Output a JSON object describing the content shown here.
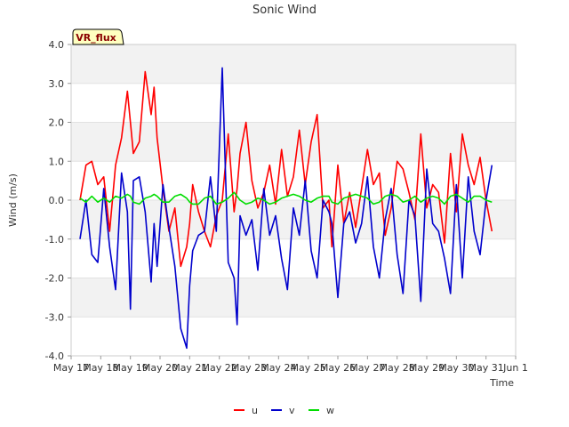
{
  "chart_data": {
    "type": "line",
    "title": "Sonic Wind",
    "xlabel": "Time",
    "ylabel": "Wind (m/s)",
    "badge": "VR_flux",
    "ylim": [
      -4.0,
      4.0
    ],
    "yticks": [
      -4.0,
      -3.0,
      -2.0,
      -1.0,
      0.0,
      1.0,
      2.0,
      3.0,
      4.0
    ],
    "ytick_labels": [
      "-4.0",
      "-3.0",
      "-2.0",
      "-1.0",
      "0.0",
      "1.0",
      "2.0",
      "3.0",
      "4.0"
    ],
    "xlim": [
      0,
      15
    ],
    "xticks": [
      0,
      1,
      2,
      3,
      4,
      5,
      6,
      7,
      8,
      9,
      10,
      11,
      12,
      13,
      14,
      15
    ],
    "xtick_labels": [
      "May 17",
      "May 18",
      "May 19",
      "May 20",
      "May 21",
      "May 22",
      "May 23",
      "May 24",
      "May 25",
      "May 26",
      "May 27",
      "May 28",
      "May 29",
      "May 30",
      "May 31",
      "Jun 1"
    ],
    "grid": "horizontal bands",
    "legend_position": "bottom-center",
    "series": [
      {
        "name": "u",
        "color": "#ff0000",
        "x": [
          0.3,
          0.5,
          0.7,
          0.9,
          1.1,
          1.3,
          1.5,
          1.7,
          1.9,
          2.0,
          2.1,
          2.3,
          2.5,
          2.7,
          2.8,
          2.9,
          3.1,
          3.3,
          3.5,
          3.7,
          3.9,
          4.0,
          4.1,
          4.3,
          4.5,
          4.7,
          4.9,
          5.1,
          5.3,
          5.5,
          5.6,
          5.7,
          5.9,
          6.1,
          6.3,
          6.5,
          6.7,
          6.9,
          7.1,
          7.3,
          7.5,
          7.7,
          7.9,
          8.1,
          8.3,
          8.5,
          8.7,
          8.8,
          9.0,
          9.2,
          9.4,
          9.6,
          9.8,
          10.0,
          10.2,
          10.4,
          10.6,
          10.8,
          11.0,
          11.2,
          11.4,
          11.6,
          11.8,
          12.0,
          12.2,
          12.4,
          12.6,
          12.8,
          13.0,
          13.2,
          13.4,
          13.6,
          13.8,
          14.0,
          14.2
        ],
        "y": [
          0.0,
          0.9,
          1.0,
          0.4,
          0.6,
          -0.8,
          0.9,
          1.6,
          2.8,
          2.0,
          1.2,
          1.5,
          3.3,
          2.2,
          2.9,
          1.6,
          0.3,
          -0.8,
          -0.2,
          -1.7,
          -1.2,
          -0.6,
          0.4,
          -0.3,
          -0.8,
          -1.2,
          -0.4,
          0.0,
          1.7,
          -0.3,
          0.3,
          1.2,
          2.0,
          0.5,
          -0.2,
          0.2,
          0.9,
          -0.1,
          1.3,
          0.1,
          0.6,
          1.8,
          0.4,
          1.5,
          2.2,
          -0.2,
          0.0,
          -1.2,
          0.9,
          -0.6,
          0.2,
          -0.7,
          0.3,
          1.3,
          0.4,
          0.7,
          -0.9,
          -0.2,
          1.0,
          0.8,
          0.2,
          -0.5,
          1.7,
          -0.2,
          0.4,
          0.2,
          -1.1,
          1.2,
          -0.3,
          1.7,
          0.9,
          0.4,
          1.1,
          0.0,
          -0.8
        ]
      },
      {
        "name": "v",
        "color": "#0000cc",
        "x": [
          0.3,
          0.5,
          0.7,
          0.9,
          1.1,
          1.3,
          1.5,
          1.7,
          1.9,
          2.0,
          2.1,
          2.3,
          2.5,
          2.7,
          2.8,
          2.9,
          3.1,
          3.3,
          3.5,
          3.7,
          3.9,
          4.0,
          4.1,
          4.3,
          4.5,
          4.7,
          4.9,
          5.1,
          5.3,
          5.5,
          5.6,
          5.7,
          5.9,
          6.1,
          6.3,
          6.5,
          6.7,
          6.9,
          7.1,
          7.3,
          7.5,
          7.7,
          7.9,
          8.1,
          8.3,
          8.5,
          8.7,
          8.8,
          9.0,
          9.2,
          9.4,
          9.6,
          9.8,
          10.0,
          10.2,
          10.4,
          10.6,
          10.8,
          11.0,
          11.2,
          11.4,
          11.6,
          11.8,
          12.0,
          12.2,
          12.4,
          12.6,
          12.8,
          13.0,
          13.2,
          13.4,
          13.6,
          13.8,
          14.0,
          14.2
        ],
        "y": [
          -1.0,
          0.0,
          -1.4,
          -1.6,
          0.3,
          -1.2,
          -2.3,
          0.7,
          -0.3,
          -2.8,
          0.5,
          0.6,
          -0.3,
          -2.1,
          -0.6,
          -1.7,
          0.4,
          -0.7,
          -1.7,
          -3.3,
          -3.8,
          -2.2,
          -1.3,
          -0.9,
          -0.8,
          0.6,
          -0.8,
          3.4,
          -1.6,
          -2.0,
          -3.2,
          -0.4,
          -0.9,
          -0.5,
          -1.8,
          0.3,
          -0.9,
          -0.4,
          -1.5,
          -2.3,
          -0.2,
          -0.9,
          0.5,
          -1.3,
          -2.0,
          0.0,
          -0.3,
          -0.6,
          -2.5,
          -0.6,
          -0.3,
          -1.1,
          -0.6,
          0.6,
          -1.2,
          -2.0,
          -0.5,
          0.3,
          -1.4,
          -2.4,
          0.0,
          -0.4,
          -2.6,
          0.8,
          -0.6,
          -0.8,
          -1.5,
          -2.4,
          0.4,
          -2.0,
          0.6,
          -0.8,
          -1.4,
          0.0,
          0.9
        ]
      },
      {
        "name": "w",
        "color": "#00dd00",
        "x": [
          0.3,
          0.5,
          0.7,
          0.9,
          1.1,
          1.3,
          1.5,
          1.7,
          1.9,
          2.0,
          2.1,
          2.3,
          2.5,
          2.7,
          2.8,
          2.9,
          3.1,
          3.3,
          3.5,
          3.7,
          3.9,
          4.0,
          4.1,
          4.3,
          4.5,
          4.7,
          4.9,
          5.1,
          5.3,
          5.5,
          5.6,
          5.7,
          5.9,
          6.1,
          6.3,
          6.5,
          6.7,
          6.9,
          7.1,
          7.3,
          7.5,
          7.7,
          7.9,
          8.1,
          8.3,
          8.5,
          8.7,
          8.8,
          9.0,
          9.2,
          9.4,
          9.6,
          9.8,
          10.0,
          10.2,
          10.4,
          10.6,
          10.8,
          11.0,
          11.2,
          11.4,
          11.6,
          11.8,
          12.0,
          12.2,
          12.4,
          12.6,
          12.8,
          13.0,
          13.2,
          13.4,
          13.6,
          13.8,
          14.0,
          14.2
        ],
        "y": [
          0.05,
          -0.05,
          0.1,
          -0.05,
          0.05,
          -0.05,
          0.1,
          0.05,
          0.15,
          0.1,
          -0.05,
          -0.1,
          0.05,
          0.1,
          0.15,
          0.1,
          -0.05,
          -0.05,
          0.1,
          0.15,
          0.05,
          -0.05,
          -0.1,
          -0.1,
          0.05,
          0.1,
          -0.1,
          -0.05,
          0.05,
          0.2,
          0.1,
          0.0,
          -0.1,
          -0.05,
          0.05,
          0.0,
          -0.1,
          -0.05,
          0.05,
          0.1,
          0.15,
          0.1,
          0.0,
          -0.05,
          0.05,
          0.1,
          0.1,
          -0.05,
          -0.1,
          0.05,
          0.1,
          0.15,
          0.1,
          0.05,
          -0.1,
          -0.05,
          0.1,
          0.15,
          0.1,
          -0.05,
          0.0,
          0.1,
          -0.05,
          0.05,
          0.1,
          0.05,
          -0.1,
          0.1,
          0.15,
          0.05,
          -0.05,
          0.1,
          0.1,
          0.0,
          -0.05
        ]
      }
    ]
  }
}
